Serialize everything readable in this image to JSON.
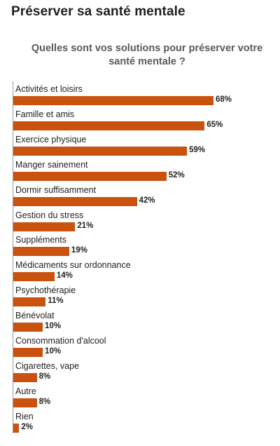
{
  "header": {
    "title": "Préserver sa santé mentale"
  },
  "chart_data": {
    "type": "bar",
    "orientation": "horizontal",
    "title": "Quelles sont vos solutions pour préserver votre santé mentale ?",
    "categories": [
      "Activités et loisirs",
      "Famille et amis",
      "Exercice physique",
      "Manger sainement",
      "Dormir suffisamment",
      "Gestion du stress",
      "Suppléments",
      "Médicaments sur ordonnance",
      "Psychothérapie",
      "Bénévolat",
      "Consommation d'alcool",
      "Cigarettes, vape",
      "Autre",
      "Rien"
    ],
    "values": [
      68,
      65,
      59,
      52,
      42,
      21,
      19,
      14,
      11,
      10,
      10,
      8,
      8,
      2
    ],
    "value_labels": [
      "68%",
      "65%",
      "59%",
      "52%",
      "42%",
      "21%",
      "19%",
      "14%",
      "11%",
      "10%",
      "10%",
      "8%",
      "8%",
      "2%"
    ],
    "unit": "%",
    "xlim": [
      0,
      100
    ],
    "grid": false,
    "legend": "none",
    "bar_color": "#c8520e"
  }
}
